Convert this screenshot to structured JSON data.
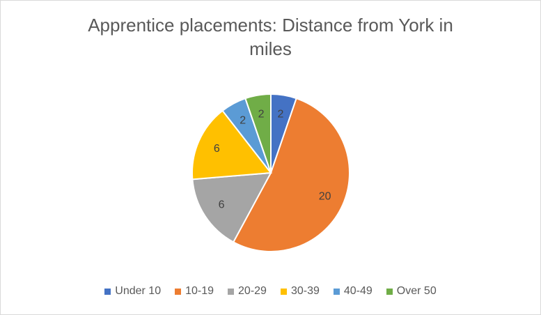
{
  "chart_data": {
    "type": "pie",
    "title": "Apprentice placements: Distance from York in miles",
    "categories": [
      "Under 10",
      "10-19",
      "20-29",
      "30-39",
      "40-49",
      "Over 50"
    ],
    "values": [
      2,
      20,
      6,
      6,
      2,
      2
    ],
    "colors": [
      "#4472c4",
      "#ed7d31",
      "#a5a5a5",
      "#ffc000",
      "#5b9bd5",
      "#70ad47"
    ],
    "legend": "bottom"
  }
}
